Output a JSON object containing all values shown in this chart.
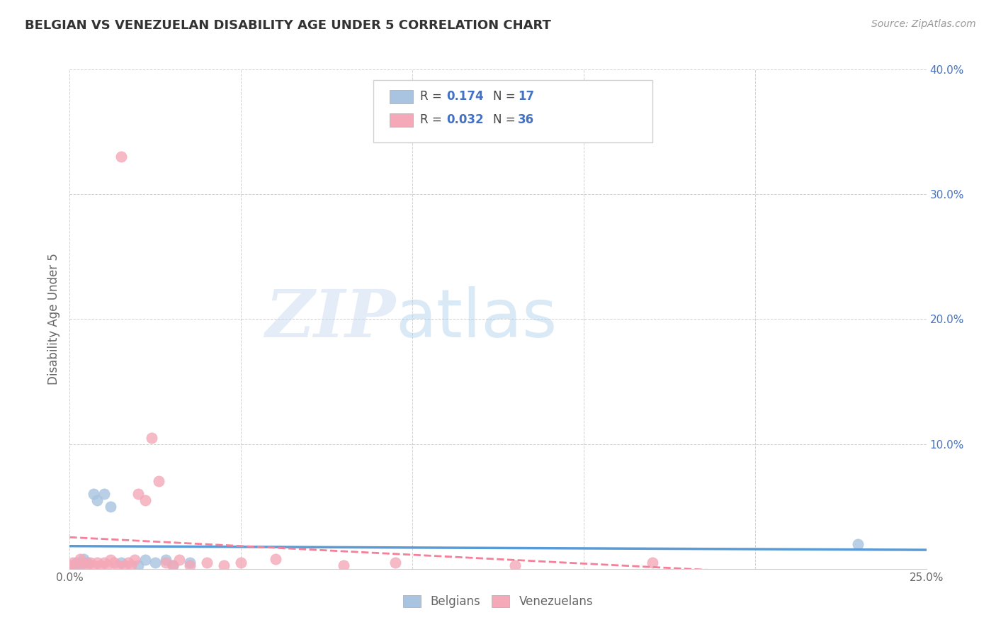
{
  "title": "BELGIAN VS VENEZUELAN DISABILITY AGE UNDER 5 CORRELATION CHART",
  "source": "Source: ZipAtlas.com",
  "xlabel": "",
  "ylabel": "Disability Age Under 5",
  "xlim": [
    0.0,
    0.25
  ],
  "ylim": [
    0.0,
    0.4
  ],
  "xticks": [
    0.0,
    0.05,
    0.1,
    0.15,
    0.2,
    0.25
  ],
  "yticks": [
    0.0,
    0.1,
    0.2,
    0.3,
    0.4
  ],
  "xticklabels": [
    "0.0%",
    "",
    "",
    "",
    "",
    "25.0%"
  ],
  "yticklabels": [
    "",
    "10.0%",
    "20.0%",
    "30.0%",
    "40.0%"
  ],
  "belgian_color": "#a8c4e0",
  "venezuelan_color": "#f4a8b8",
  "belgian_line_color": "#5b9bd5",
  "venezuelan_line_color": "#f48099",
  "legend_label_1": "Belgians",
  "legend_label_2": "Venezuelans",
  "R_belgian": 0.174,
  "N_belgian": 17,
  "R_venezuelan": 0.032,
  "N_venezuelan": 36,
  "watermark_zip": "ZIP",
  "watermark_atlas": "atlas",
  "belgian_x": [
    0.001,
    0.002,
    0.003,
    0.004,
    0.005,
    0.007,
    0.008,
    0.01,
    0.012,
    0.015,
    0.02,
    0.022,
    0.025,
    0.028,
    0.03,
    0.035,
    0.23
  ],
  "belgian_y": [
    0.003,
    0.005,
    0.003,
    0.008,
    0.005,
    0.06,
    0.055,
    0.06,
    0.05,
    0.005,
    0.003,
    0.007,
    0.005,
    0.007,
    0.003,
    0.005,
    0.02
  ],
  "venezuelan_x": [
    0.0,
    0.001,
    0.002,
    0.003,
    0.004,
    0.005,
    0.006,
    0.007,
    0.008,
    0.009,
    0.01,
    0.011,
    0.012,
    0.013,
    0.014,
    0.015,
    0.016,
    0.017,
    0.018,
    0.019,
    0.02,
    0.022,
    0.024,
    0.026,
    0.028,
    0.03,
    0.032,
    0.035,
    0.04,
    0.045,
    0.05,
    0.06,
    0.08,
    0.095,
    0.13,
    0.17
  ],
  "venezuelan_y": [
    0.003,
    0.005,
    0.003,
    0.008,
    0.005,
    0.003,
    0.005,
    0.003,
    0.005,
    0.003,
    0.005,
    0.003,
    0.007,
    0.005,
    0.003,
    0.33,
    0.003,
    0.005,
    0.003,
    0.007,
    0.06,
    0.055,
    0.105,
    0.07,
    0.005,
    0.003,
    0.007,
    0.003,
    0.005,
    0.003,
    0.005,
    0.008,
    0.003,
    0.005,
    0.003,
    0.005
  ],
  "background_color": "#ffffff",
  "grid_color": "#cccccc",
  "title_color": "#333333",
  "stats_color": "#4472c4",
  "axis_label_color": "#666666"
}
